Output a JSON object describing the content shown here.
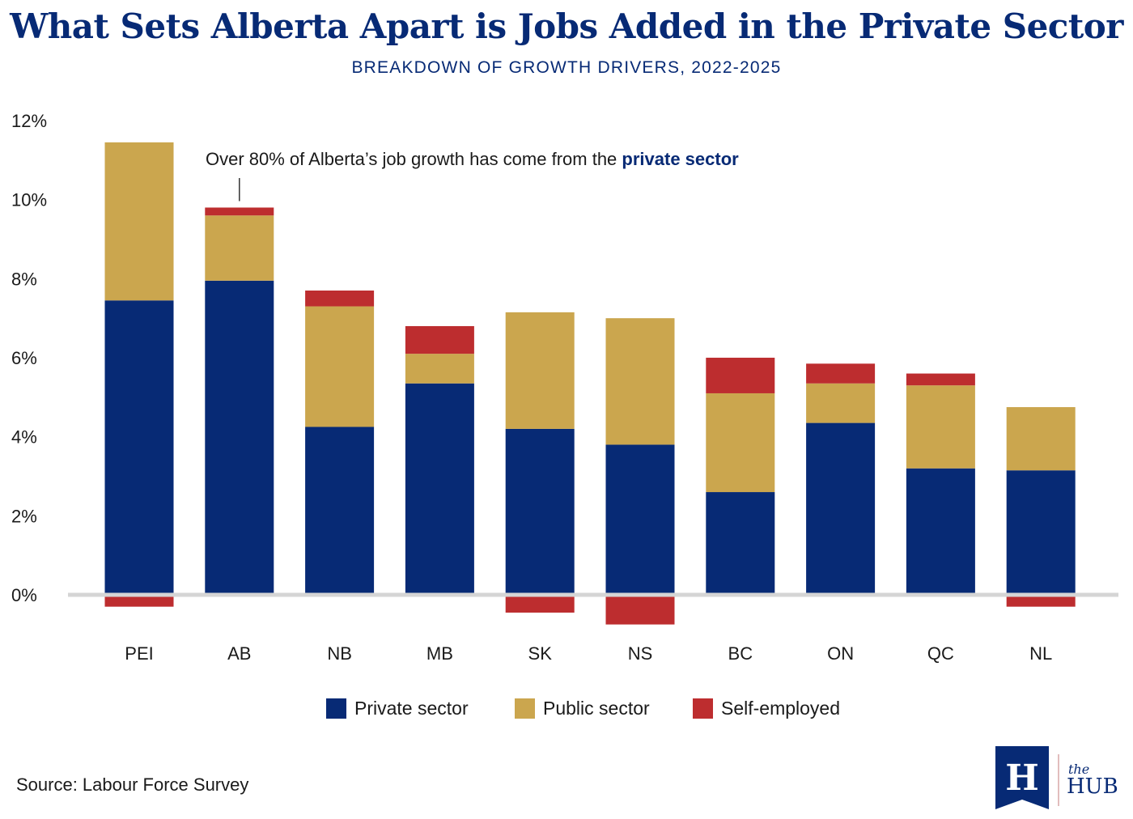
{
  "chart_data": {
    "type": "bar",
    "stacked": true,
    "title": "What Sets Alberta Apart is Jobs Added in the Private Sector",
    "subtitle": "BREAKDOWN OF GROWTH DRIVERS, 2022-2025",
    "categories": [
      "PEI",
      "AB",
      "NB",
      "MB",
      "SK",
      "NS",
      "BC",
      "ON",
      "QC",
      "NL"
    ],
    "series": [
      {
        "name": "Private sector",
        "color": "#072a75",
        "values": [
          7.45,
          7.95,
          4.25,
          5.35,
          4.2,
          3.8,
          2.6,
          4.35,
          3.2,
          3.15
        ]
      },
      {
        "name": "Public sector",
        "color": "#cba64e",
        "values": [
          4.0,
          1.65,
          3.05,
          0.75,
          2.95,
          3.2,
          2.5,
          1.0,
          2.1,
          1.6
        ]
      },
      {
        "name": "Self-employed",
        "color": "#bd2d2f",
        "values": [
          -0.3,
          0.2,
          0.4,
          0.7,
          -0.45,
          -0.75,
          0.9,
          0.5,
          0.3,
          -0.3
        ]
      }
    ],
    "yticks": [
      "12%",
      "10%",
      "8%",
      "6%",
      "4%",
      "2%",
      "0%"
    ],
    "ylim": [
      -1,
      12
    ],
    "xlabel": "",
    "ylabel": "",
    "legend_position": "bottom-center"
  },
  "annotation": {
    "text_plain": "Over 80% of Alberta’s job growth has come from the ",
    "text_bold": "private sector",
    "target_category": "AB"
  },
  "source": "Source: Labour Force Survey",
  "logo": {
    "letter": "H",
    "small": "the",
    "large": "HUB"
  }
}
